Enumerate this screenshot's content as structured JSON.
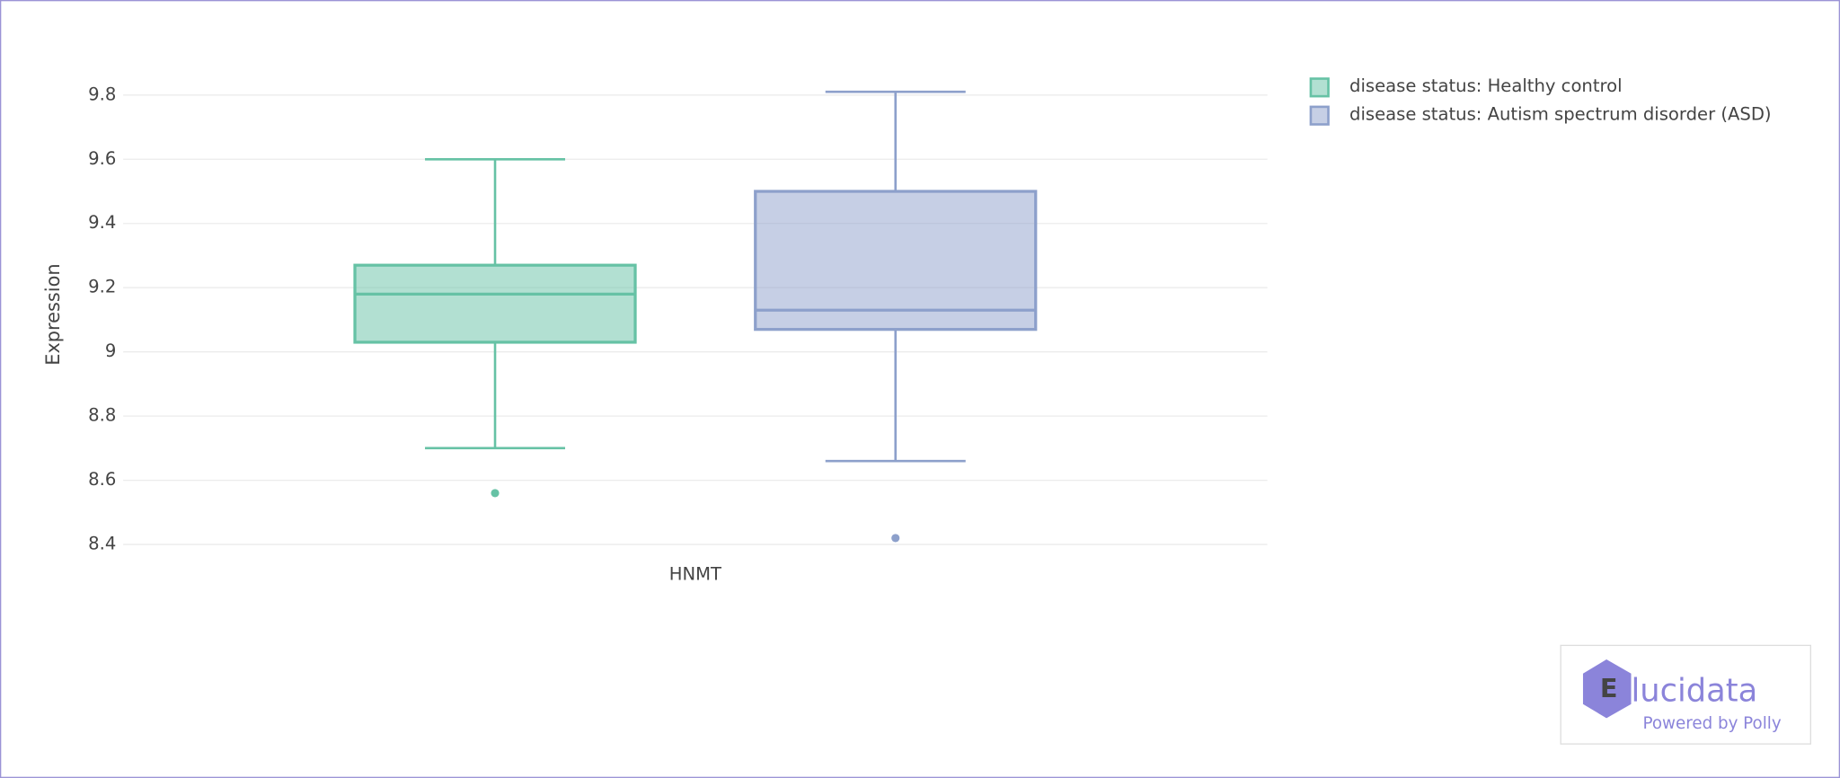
{
  "chart_data": {
    "type": "box",
    "y_label": "Expression",
    "categories": [
      "HNMT"
    ],
    "ylim": [
      8.4,
      9.86
    ],
    "yticks": [
      8.4,
      8.6,
      8.8,
      9,
      9.2,
      9.4,
      9.6,
      9.8
    ],
    "grid": true,
    "legend": "top-right",
    "series": [
      {
        "name": "disease status: Healthy control",
        "color": "#66c2a5",
        "min": [
          8.7
        ],
        "q1": [
          9.03
        ],
        "median": [
          9.18
        ],
        "q3": [
          9.27
        ],
        "max": [
          9.6
        ],
        "outliers": [
          [
            8.56
          ]
        ]
      },
      {
        "name": "disease status: Autism spectrum disorder (ASD)",
        "color": "#8da0cb",
        "min": [
          8.66
        ],
        "q1": [
          9.07
        ],
        "median": [
          9.13
        ],
        "q3": [
          9.5
        ],
        "max": [
          9.81
        ],
        "outliers": [
          [
            8.42
          ]
        ]
      }
    ]
  },
  "logo": {
    "name": "lucidata",
    "tagline": "Powered by Polly"
  }
}
